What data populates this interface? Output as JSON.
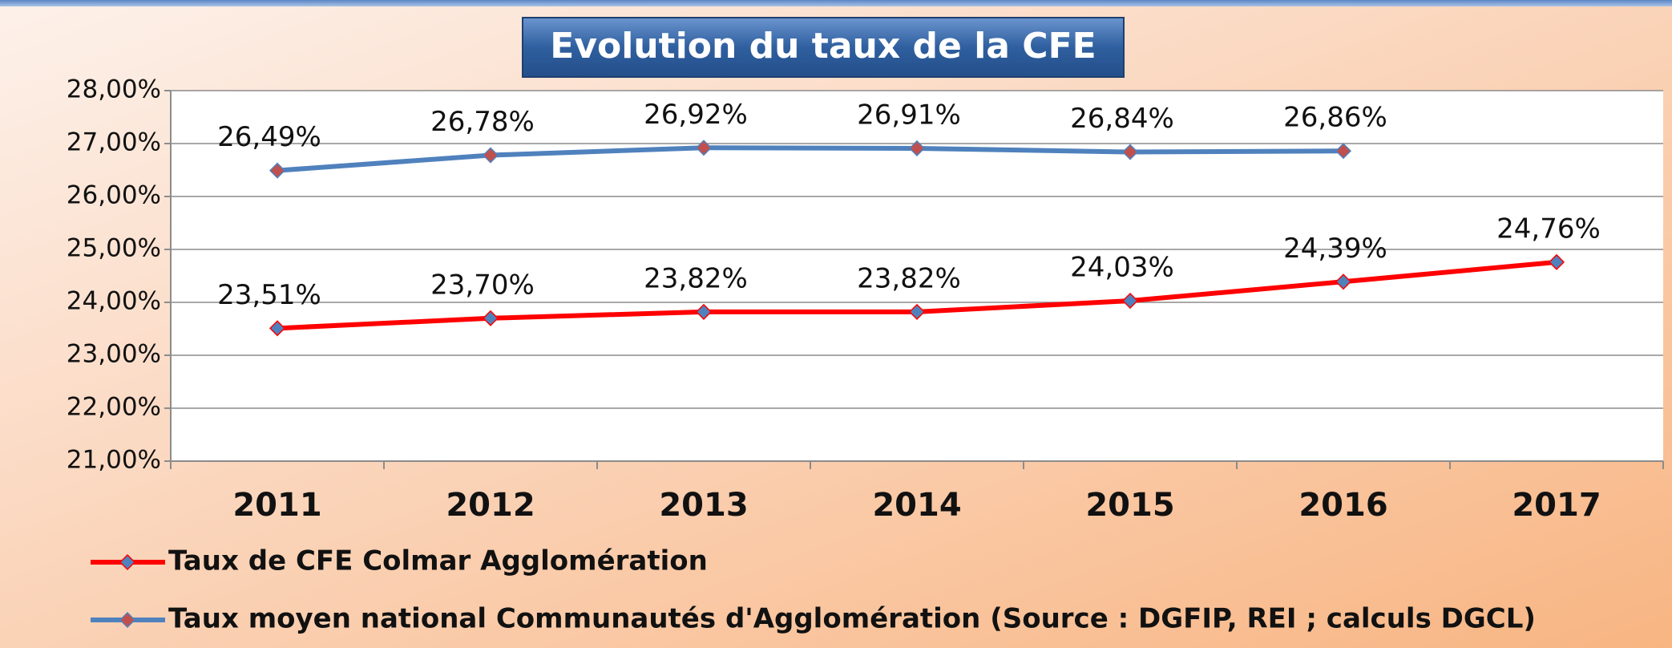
{
  "chart_data": {
    "type": "line",
    "title": "Evolution du taux de la CFE",
    "categories": [
      "2011",
      "2012",
      "2013",
      "2014",
      "2015",
      "2016",
      "2017"
    ],
    "series": [
      {
        "name": "Taux de CFE Colmar Agglomération",
        "color": "#ff0000",
        "marker_color": "#4f81bd",
        "values": [
          23.51,
          23.7,
          23.82,
          23.82,
          24.03,
          24.39,
          24.76
        ],
        "value_labels": [
          "23,51%",
          "23,70%",
          "23,82%",
          "23,82%",
          "24,03%",
          "24,39%",
          "24,76%"
        ]
      },
      {
        "name": "Taux moyen national Communautés d'Agglomération (Source : DGFIP, REI ; calculs DGCL)",
        "color": "#4f81bd",
        "marker_color": "#c0504d",
        "values": [
          26.49,
          26.78,
          26.92,
          26.91,
          26.84,
          26.86,
          null
        ],
        "value_labels": [
          "26,49%",
          "26,78%",
          "26,92%",
          "26,91%",
          "26,84%",
          "26,86%",
          null
        ]
      }
    ],
    "ylim": [
      21,
      28
    ],
    "yticks": [
      {
        "value": 21,
        "label": "21,00%"
      },
      {
        "value": 22,
        "label": "22,00%"
      },
      {
        "value": 23,
        "label": "23,00%"
      },
      {
        "value": 24,
        "label": "24,00%"
      },
      {
        "value": 25,
        "label": "25,00%"
      },
      {
        "value": 26,
        "label": "26,00%"
      },
      {
        "value": 27,
        "label": "27,00%"
      },
      {
        "value": 28,
        "label": "28,00%"
      }
    ],
    "grid": true,
    "legend": "bottom"
  }
}
